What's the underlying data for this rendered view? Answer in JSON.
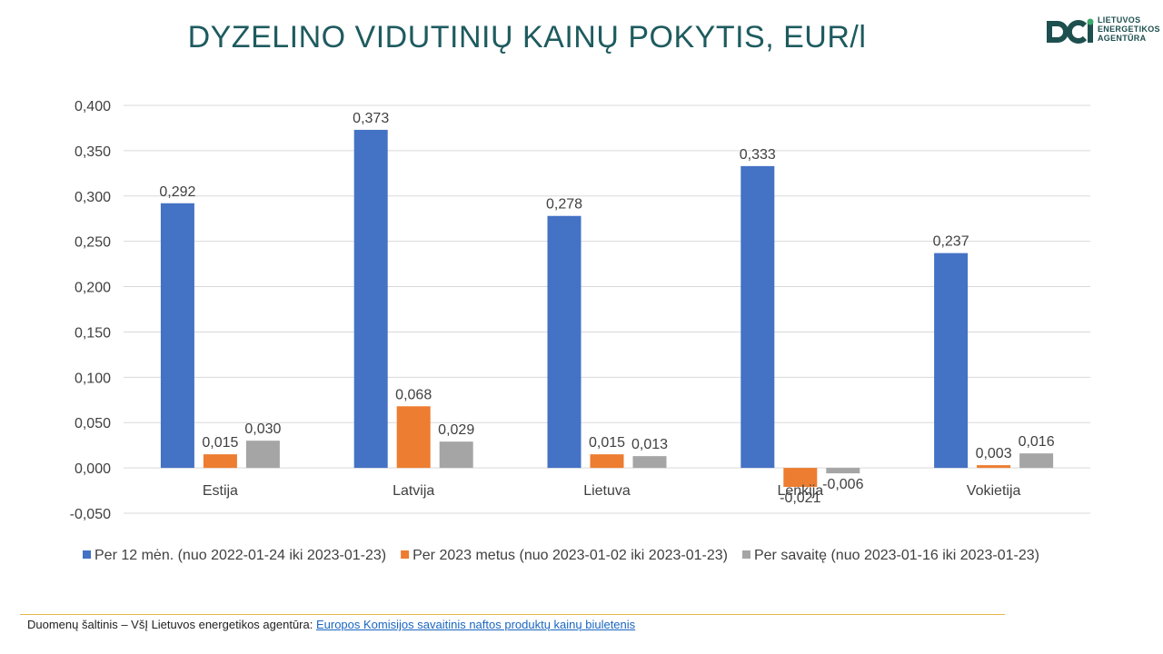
{
  "header": {
    "title": "DYZELINO VIDUTINIŲ KAINŲ POKYTIS, EUR/l",
    "logo_lines": [
      "LIETUVOS",
      "ENERGETIKOS",
      "AGENTŪRA"
    ]
  },
  "colors": {
    "series": [
      "#4472c4",
      "#ed7d31",
      "#a5a5a5"
    ],
    "title": "#1e5b5f",
    "logo": "#1e4f4f",
    "footer_rule": "#e7b84a",
    "link": "#1a66c2"
  },
  "chart_data": {
    "type": "bar",
    "title": "DYZELINO VIDUTINIŲ KAINŲ POKYTIS, EUR/l",
    "categories": [
      "Estija",
      "Latvija",
      "Lietuva",
      "Lenkija",
      "Vokietija"
    ],
    "series": [
      {
        "name": "Per 12 mėn. (nuo 2022-01-24 iki 2023-01-23)",
        "values": [
          0.292,
          0.373,
          0.278,
          0.333,
          0.237
        ],
        "labels": [
          "0,292",
          "0,373",
          "0,278",
          "0,333",
          "0,237"
        ]
      },
      {
        "name": "Per 2023 metus (nuo 2023-01-02 iki 2023-01-23)",
        "values": [
          0.015,
          0.068,
          0.015,
          -0.021,
          0.003
        ],
        "labels": [
          "0,015",
          "0,068",
          "0,015",
          "-0,021",
          "0,003"
        ]
      },
      {
        "name": "Per savaitę (nuo 2023-01-16 iki 2023-01-23)",
        "values": [
          0.03,
          0.029,
          0.013,
          -0.006,
          0.016
        ],
        "labels": [
          "0,030",
          "0,029",
          "0,013",
          "-0,006",
          "0,016"
        ]
      }
    ],
    "ylim": [
      -0.05,
      0.4
    ],
    "yticks": [
      -0.05,
      0.0,
      0.05,
      0.1,
      0.15,
      0.2,
      0.25,
      0.3,
      0.35,
      0.4
    ],
    "ytick_labels": [
      "-0,050",
      "0,000",
      "0,050",
      "0,100",
      "0,150",
      "0,200",
      "0,250",
      "0,300",
      "0,350",
      "0,400"
    ],
    "grid": true,
    "legend": "bottom",
    "xlabel": "",
    "ylabel": ""
  },
  "footer": {
    "source_prefix": "Duomenų šaltinis – VšĮ Lietuvos energetikos agentūra: ",
    "source_link": "Europos Komisijos savaitinis naftos produktų kainų biuletenis"
  }
}
